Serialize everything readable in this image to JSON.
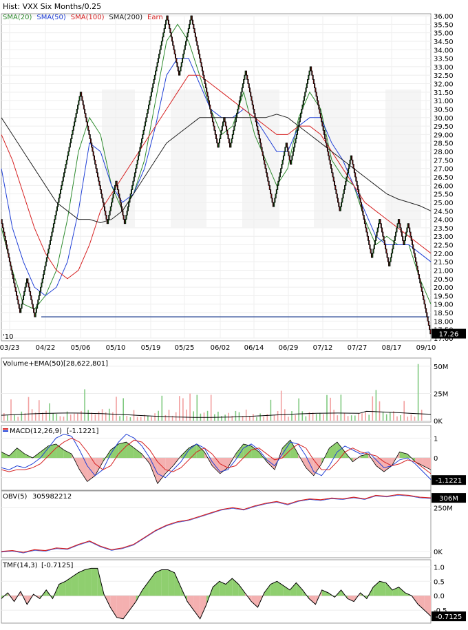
{
  "chart_data": [
    {
      "type": "line",
      "subtype": "renko-with-overlays",
      "title": "Hist: VXX Six Months/0.25",
      "legend": [
        {
          "name": "SMA(20)",
          "color": "#2e8b2e"
        },
        {
          "name": "SMA(50)",
          "color": "#1f3fd6"
        },
        {
          "name": "SMA(100)",
          "color": "#d62020"
        },
        {
          "name": "SMA(200)",
          "color": "#222222"
        },
        {
          "name": "Earn",
          "color": "#d62020"
        }
      ],
      "legend_position": "top-left",
      "ylim": [
        17.0,
        36.0
      ],
      "y_ticks": [
        "36.00",
        "35.50",
        "35.00",
        "34.50",
        "34.00",
        "33.50",
        "33.00",
        "32.50",
        "32.00",
        "31.50",
        "31.00",
        "30.50",
        "30.00",
        "29.50",
        "29.00",
        "28.50",
        "28.00",
        "27.50",
        "27.00",
        "26.50",
        "26.00",
        "25.50",
        "25.00",
        "24.50",
        "24.00",
        "23.50",
        "23.00",
        "22.50",
        "22.00",
        "21.50",
        "21.00",
        "20.50",
        "20.00",
        "19.50",
        "19.00",
        "18.50",
        "18.00",
        "17.50",
        "17.00"
      ],
      "x_labels": [
        "03/23",
        "04/22",
        "05/06",
        "05/10",
        "05/19",
        "05/25",
        "06/02",
        "06/14",
        "06/29",
        "07/12",
        "07/27",
        "08/17",
        "09/10"
      ],
      "year_label": "'10",
      "last_value_label": "17.26",
      "support_line": 18.25,
      "renko_path": [
        24.0,
        18.5,
        20.5,
        18.25,
        20.5,
        31.5,
        23.75,
        26.25,
        23.75,
        36.0,
        32.5,
        36.0,
        30.75,
        28.25,
        30.0,
        28.25,
        32.75,
        24.75,
        28.5,
        27.25,
        33.0,
        24.5,
        27.75,
        21.75,
        24.0,
        21.25,
        24.0,
        22.5,
        23.75,
        21.25,
        17.25
      ],
      "series": [
        {
          "name": "SMA(20)",
          "values": [
            23.5,
            21.0,
            19.0,
            18.7,
            19.5,
            21.0,
            24.0,
            28.0,
            30.0,
            29.0,
            26.0,
            24.5,
            25.5,
            27.5,
            31.0,
            34.5,
            35.5,
            34.5,
            32.5,
            30.5,
            29.0,
            29.5,
            31.5,
            29.0,
            27.5,
            26.0,
            27.0,
            30.0,
            31.5,
            30.5,
            27.5,
            26.5,
            26.0,
            24.0,
            22.5,
            23.0,
            22.5,
            22.5,
            20.5,
            19.0
          ]
        },
        {
          "name": "SMA(50)",
          "values": [
            27.0,
            23.5,
            21.5,
            20.0,
            19.5,
            20.0,
            21.5,
            24.5,
            28.5,
            28.0,
            26.0,
            25.0,
            25.5,
            27.0,
            29.5,
            32.5,
            33.5,
            33.5,
            32.0,
            30.5,
            30.0,
            30.0,
            30.5,
            30.0,
            29.0,
            28.0,
            28.0,
            29.5,
            30.0,
            30.0,
            28.5,
            27.5,
            26.0,
            24.5,
            23.0,
            22.5,
            22.5,
            22.5,
            22.0,
            21.5
          ]
        },
        {
          "name": "SMA(100)",
          "values": [
            29.0,
            27.5,
            25.5,
            23.5,
            22.0,
            21.0,
            20.5,
            21.0,
            22.5,
            24.5,
            25.5,
            26.5,
            27.5,
            28.5,
            29.5,
            30.5,
            31.5,
            32.5,
            32.5,
            32.0,
            31.5,
            31.0,
            30.5,
            30.0,
            29.5,
            29.0,
            29.0,
            29.5,
            29.5,
            29.0,
            28.0,
            27.0,
            26.0,
            25.0,
            24.5,
            24.0,
            23.5,
            23.0,
            22.5,
            22.0
          ]
        },
        {
          "name": "SMA(200)",
          "values": [
            30.0,
            29.0,
            28.0,
            27.0,
            26.0,
            25.0,
            24.5,
            24.0,
            24.0,
            23.8,
            24.0,
            24.5,
            25.5,
            26.5,
            27.5,
            28.5,
            29.0,
            29.5,
            30.0,
            30.0,
            30.0,
            30.0,
            30.0,
            30.0,
            30.0,
            30.2,
            30.0,
            29.5,
            29.0,
            28.5,
            28.0,
            27.5,
            27.0,
            26.5,
            26.0,
            25.5,
            25.2,
            25.0,
            24.8,
            24.5
          ]
        }
      ]
    },
    {
      "type": "bar",
      "title": "Volume+EMA(50)",
      "label_value": "[28,622,801]",
      "y_ticks": [
        "50M",
        "25M",
        "0K"
      ],
      "ylim_millions": [
        0,
        55
      ]
    },
    {
      "type": "area",
      "title": "MACD(12,26,9)",
      "label_value": "[-1.1221]",
      "y_ticks": [
        "1",
        "0",
        "-1"
      ],
      "last_value_label": "-1.1221",
      "ylim": [
        -1.5,
        1.5
      ],
      "histogram": [
        0.3,
        0.1,
        0.5,
        0.2,
        0.0,
        0.3,
        0.6,
        0.7,
        0.4,
        0.2,
        -0.6,
        -1.2,
        -0.9,
        -0.2,
        0.4,
        0.7,
        0.8,
        0.5,
        0.2,
        -0.3,
        -1.3,
        -0.8,
        -0.4,
        0.1,
        0.5,
        0.7,
        0.3,
        -0.4,
        -0.8,
        -0.5,
        0.2,
        0.7,
        0.6,
        0.3,
        -0.2,
        -0.6,
        0.5,
        0.9,
        0.2,
        -0.5,
        -0.9,
        -0.3,
        0.5,
        0.8,
        0.3,
        -0.2,
        0.1,
        0.2,
        -0.4,
        -0.7,
        -0.4,
        0.3,
        0.2,
        -0.2,
        -0.4,
        -0.6
      ],
      "series": [
        {
          "name": "MACD",
          "values": [
            -0.5,
            -0.6,
            -0.4,
            -0.5,
            -0.3,
            0.0,
            0.5,
            1.0,
            1.2,
            1.1,
            0.4,
            -0.4,
            -0.9,
            -0.6,
            0.2,
            0.8,
            1.2,
            1.0,
            0.6,
            0.0,
            -0.8,
            -1.0,
            -0.6,
            -0.2,
            0.4,
            0.7,
            0.5,
            -0.2,
            -0.7,
            -0.6,
            -0.1,
            0.5,
            0.7,
            0.4,
            -0.1,
            -0.4,
            0.2,
            0.8,
            0.7,
            0.1,
            -0.7,
            -0.9,
            -0.4,
            0.3,
            0.6,
            0.4,
            0.2,
            0.3,
            -0.1,
            -0.5,
            -0.4,
            -0.1,
            0.0,
            -0.3,
            -0.7,
            -1.1
          ]
        },
        {
          "name": "Signal",
          "values": [
            -0.6,
            -0.7,
            -0.6,
            -0.6,
            -0.5,
            -0.3,
            0.1,
            0.5,
            0.8,
            1.0,
            0.8,
            0.3,
            -0.3,
            -0.6,
            -0.4,
            0.2,
            0.6,
            0.9,
            0.8,
            0.4,
            -0.2,
            -0.6,
            -0.7,
            -0.5,
            -0.1,
            0.3,
            0.5,
            0.2,
            -0.3,
            -0.5,
            -0.4,
            0.0,
            0.4,
            0.5,
            0.2,
            -0.1,
            0.0,
            0.4,
            0.7,
            0.5,
            -0.1,
            -0.6,
            -0.6,
            -0.2,
            0.3,
            0.5,
            0.3,
            0.2,
            0.1,
            -0.2,
            -0.4,
            -0.3,
            -0.1,
            -0.2,
            -0.5,
            -0.8
          ]
        }
      ]
    },
    {
      "type": "line",
      "title": "OBV(5)",
      "label_value": "305982212",
      "y_ticks": [
        "250M",
        "0K"
      ],
      "last_value_label": "306M",
      "ylim_millions": [
        -20,
        330
      ],
      "values": [
        0,
        5,
        -5,
        10,
        5,
        20,
        15,
        40,
        60,
        30,
        10,
        20,
        40,
        80,
        120,
        150,
        170,
        180,
        200,
        220,
        240,
        250,
        240,
        260,
        275,
        285,
        270,
        290,
        300,
        295,
        305,
        300,
        310,
        300,
        320,
        315,
        325,
        320,
        310,
        306
      ]
    },
    {
      "type": "area",
      "title": "TMF(14,3)",
      "label_value": "[-0.7125]",
      "y_ticks": [
        "1.0",
        "0.5",
        "0.0",
        "-0.5"
      ],
      "last_value_label": "-0.7125",
      "ylim": [
        -0.9,
        1.15
      ],
      "values": [
        -0.1,
        0.1,
        -0.2,
        0.15,
        -0.3,
        0.05,
        -0.1,
        0.2,
        -0.1,
        0.4,
        0.5,
        0.65,
        0.8,
        0.9,
        0.95,
        0.95,
        0.05,
        -0.4,
        -0.75,
        -0.8,
        -0.5,
        -0.2,
        0.2,
        0.5,
        0.8,
        0.9,
        0.9,
        0.8,
        0.3,
        -0.2,
        -0.5,
        -0.8,
        -0.3,
        0.3,
        0.5,
        0.4,
        0.6,
        0.4,
        0.1,
        -0.2,
        -0.4,
        0.1,
        0.4,
        0.5,
        0.35,
        0.2,
        0.45,
        0.2,
        -0.1,
        -0.3,
        0.2,
        0.1,
        -0.05,
        0.2,
        -0.1,
        -0.2,
        0.1,
        -0.1,
        0.3,
        0.5,
        0.45,
        0.2,
        0.3,
        0.1,
        0.0,
        -0.3,
        -0.5,
        -0.71
      ]
    }
  ]
}
